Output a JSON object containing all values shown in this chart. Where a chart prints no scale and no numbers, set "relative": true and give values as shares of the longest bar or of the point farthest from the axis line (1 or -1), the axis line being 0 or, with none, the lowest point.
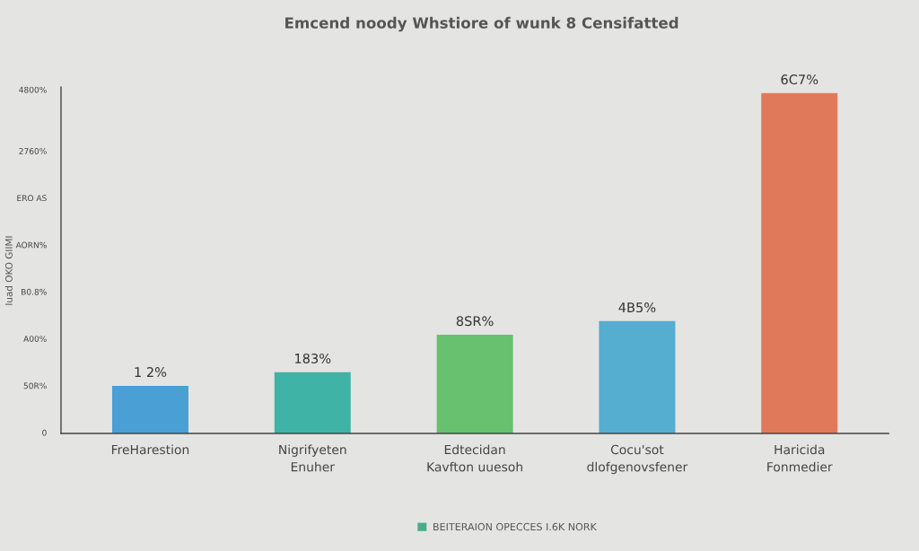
{
  "chart_data": {
    "type": "bar",
    "title": "Emcend noody Whstiore of wunk 8 Censifatted",
    "categories": [
      "FreHarestion",
      "Nigrifyeten\nEnuher",
      "Edtecidan\nKavfton uuesoh",
      "Cocu'sot\ndlofgenovsfener",
      "Haricida\nFonmedier"
    ],
    "relative": true,
    "series": [
      {
        "name": "BEITERAION OPECCES I.6K NORK",
        "color": "#45ad8c",
        "colors": [
          "#4a9fd4",
          "#3fb3a6",
          "#67c16f",
          "#55adcf",
          "#e0785a"
        ],
        "values": [
          0.14,
          0.18,
          0.29,
          0.33,
          1.0
        ]
      }
    ],
    "annotations": [
      "1 2%",
      "183%",
      "8SR%",
      "4B5%",
      "6C7%",
      "Iuad OKO GIIMI",
      "0",
      "50R%",
      "A00%",
      "B0.8%",
      "AORN%",
      "ERO AS",
      "2760%",
      "4800%"
    ],
    "legend": "bottom",
    "grid": false
  }
}
